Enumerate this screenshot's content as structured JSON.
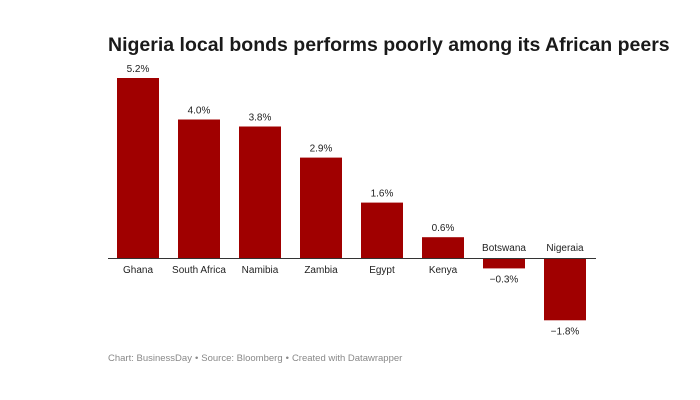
{
  "chart_data": {
    "type": "bar",
    "title": "Nigeria local bonds performs poorly among its African peers",
    "categories": [
      "Ghana",
      "South Africa",
      "Namibia",
      "Zambia",
      "Egypt",
      "Kenya",
      "Botswana",
      "Nigeraia"
    ],
    "values": [
      5.2,
      4.0,
      3.8,
      2.9,
      1.6,
      0.6,
      -0.3,
      -1.8
    ],
    "value_labels": [
      "5.2%",
      "4.0%",
      "3.8%",
      "2.9%",
      "1.6%",
      "0.6%",
      "−0.3%",
      "−1.8%"
    ],
    "unit": "%",
    "xlabel": "",
    "ylabel": "",
    "ylim": [
      -1.8,
      5.2
    ],
    "grid": false,
    "legend": "none"
  },
  "colors": {
    "bar": "#a00000",
    "baseline": "#333333",
    "text": "#222222",
    "footer": "#888888"
  },
  "footer": {
    "chart_credit": "Chart: BusinessDay",
    "source": "Source: Bloomberg",
    "created_with": "Created with Datawrapper",
    "separator": "•"
  }
}
